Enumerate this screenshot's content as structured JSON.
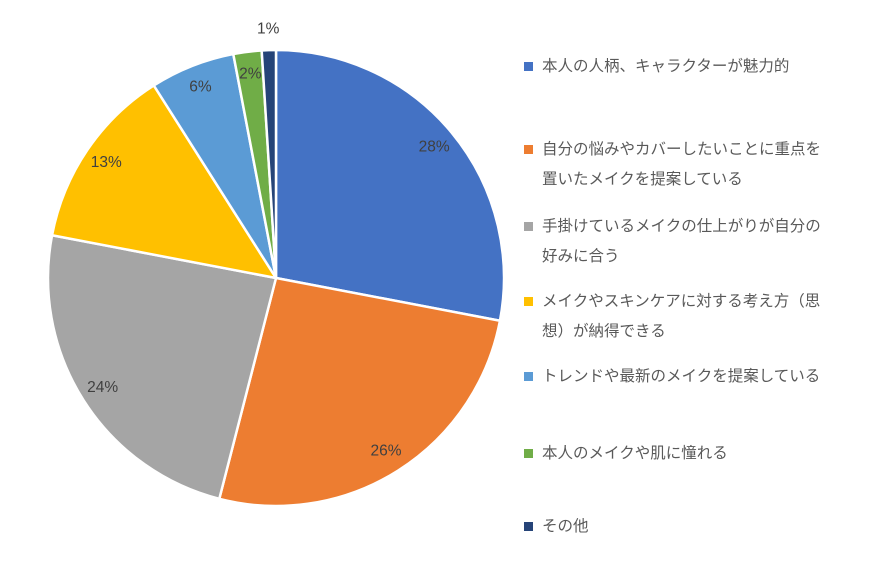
{
  "chart_data": {
    "type": "pie",
    "title": "",
    "categories": [
      "本人の人柄、キャラクターが魅力的",
      "自分の悩みやカバーしたいことに重点を置いたメイクを提案している",
      "手掛けているメイクの仕上がりが自分の好みに合う",
      "メイクやスキンケアに対する考え方（思想）が納得できる",
      "トレンドや最新のメイクを提案している",
      "本人のメイクや肌に憧れる",
      "その他"
    ],
    "values": [
      28,
      26,
      24,
      13,
      6,
      2,
      1
    ],
    "data_labels": [
      "28%",
      "26%",
      "24%",
      "13%",
      "6%",
      "2%",
      "1%"
    ],
    "colors": [
      "#4472C4",
      "#ED7D31",
      "#A5A5A5",
      "#FFC000",
      "#5B9BD5",
      "#70AD47",
      "#264478"
    ],
    "legend_position": "right",
    "legend_label_lines": [
      [
        "本人の人柄、キャラクターが魅力的"
      ],
      [
        "自分の悩みやカバーしたいことに重点を",
        "置いたメイクを提案している"
      ],
      [
        "手掛けているメイクの仕上がりが自分の",
        "好みに合う"
      ],
      [
        "メイクやスキンケアに対する考え方（思",
        "想）が納得できる"
      ],
      [
        "トレンドや最新のメイクを提案している"
      ],
      [
        "本人のメイクや肌に憧れる"
      ],
      [
        "その他"
      ]
    ],
    "start_angle_deg": 0,
    "direction": "clockwise",
    "label_color": "#404040",
    "legend_text_color": "#595959",
    "background": "#FFFFFF"
  }
}
